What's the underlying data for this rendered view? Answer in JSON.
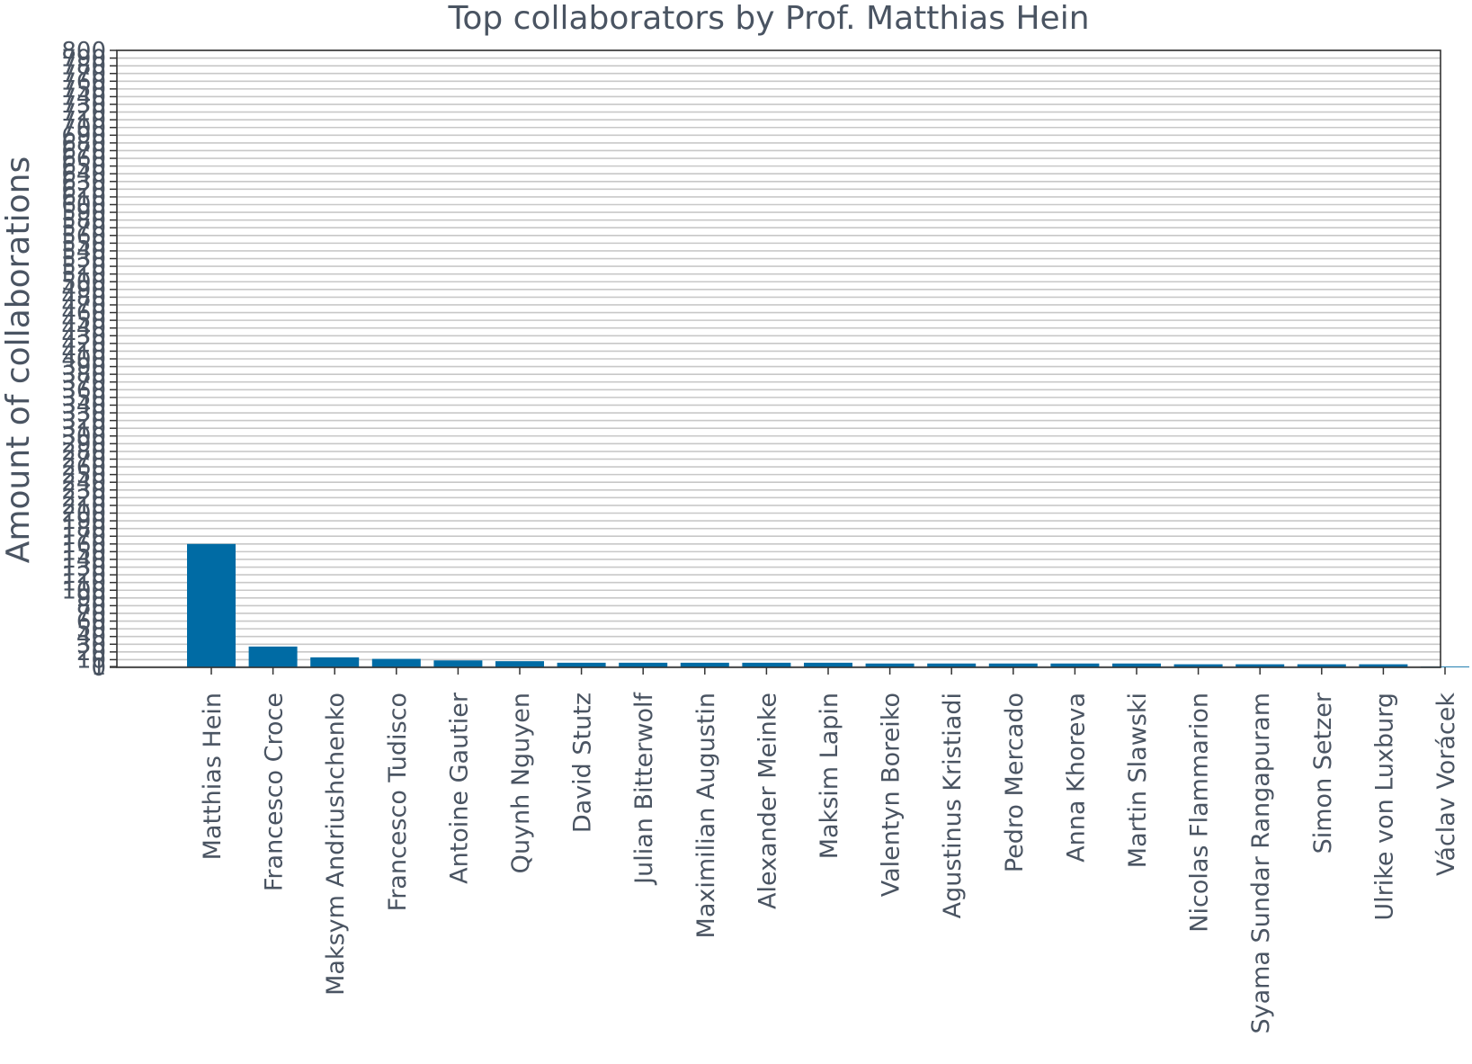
{
  "chart_data": {
    "type": "bar",
    "title": "Top collaborators by Prof. Matthias Hein",
    "xlabel": "",
    "ylabel": "Amount of collaborations",
    "ylim": [
      0,
      800
    ],
    "grid": true,
    "bar_color": "#006ba4",
    "categories": [
      "Matthias Hein",
      "Francesco Croce",
      "Maksym Andriushchenko",
      "Francesco Tudisco",
      "Antoine Gautier",
      "Quynh Nguyen",
      "David Stutz",
      "Julian Bitterwolf",
      "Maximilian Augustin",
      "Alexander Meinke",
      "Maksim Lapin",
      "Valentyn Boreiko",
      "Agustinus Kristiadi",
      "Pedro Mercado",
      "Anna Khoreva",
      "Martin Slawski",
      "Nicolas Flammarion",
      "Syama Sundar Rangapuram",
      "Simon Setzer",
      "Ulrike von Luxburg",
      "Václav Vorácek"
    ],
    "values": [
      160,
      27,
      13,
      11,
      9,
      8,
      6,
      6,
      6,
      6,
      6,
      5,
      5,
      5,
      5,
      5,
      4,
      4,
      4,
      4,
      1
    ],
    "yticks": [
      0,
      1,
      10,
      20,
      30,
      40,
      50,
      60,
      70,
      80,
      90,
      100,
      110,
      120,
      130,
      140,
      150,
      160,
      170,
      180,
      190,
      200,
      210,
      220,
      230,
      240,
      250,
      260,
      270,
      280,
      290,
      300,
      310,
      320,
      330,
      340,
      350,
      360,
      370,
      380,
      390,
      400,
      410,
      420,
      430,
      440,
      450,
      460,
      470,
      480,
      490,
      500,
      510,
      520,
      530,
      540,
      550,
      560,
      570,
      580,
      590,
      600,
      610,
      620,
      630,
      640,
      650,
      660,
      670,
      680,
      690,
      700,
      710,
      720,
      730,
      740,
      750,
      760,
      770,
      780,
      790,
      800
    ]
  }
}
